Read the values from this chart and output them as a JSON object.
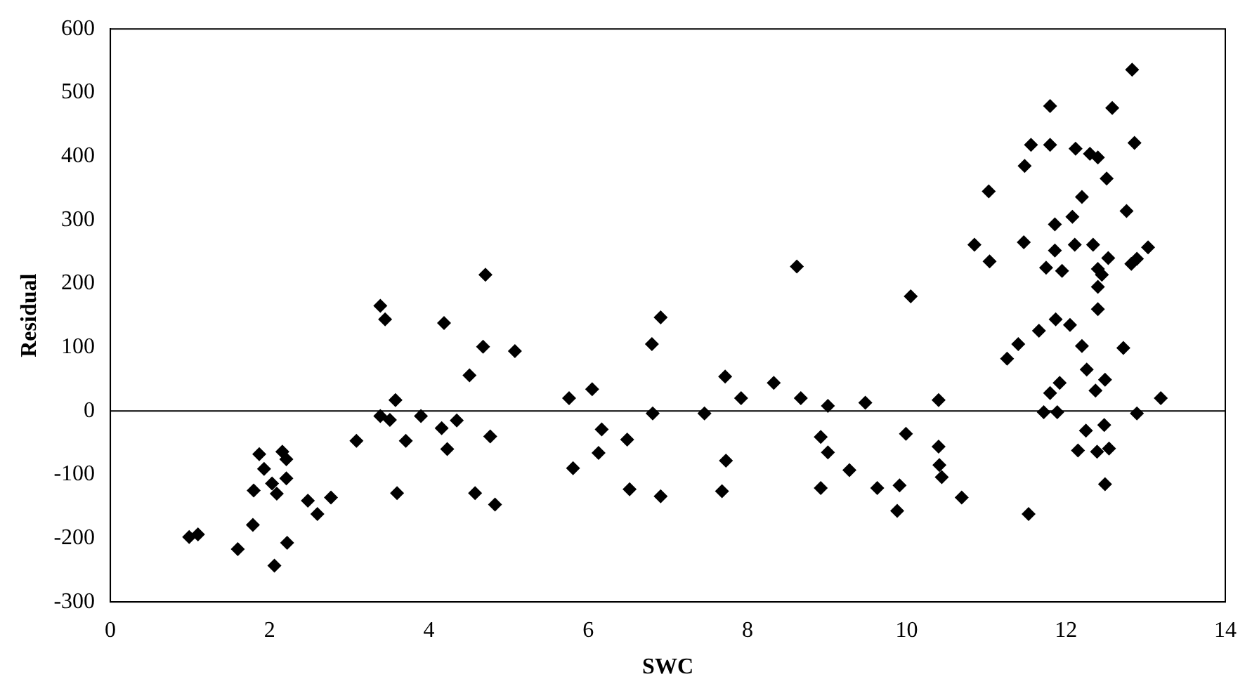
{
  "chart_data": {
    "type": "scatter",
    "xlabel": "SWC",
    "ylabel": "Residual",
    "marker": "diamond",
    "grid": false,
    "legend": false,
    "xlim": [
      0,
      14
    ],
    "xticks": [
      0,
      2,
      4,
      6,
      8,
      10,
      12,
      14
    ],
    "ylim": [
      -300,
      600
    ],
    "yticks": [
      -300,
      -200,
      -100,
      0,
      100,
      200,
      300,
      400,
      500,
      600
    ],
    "ref_lines": [
      {
        "axis": "y",
        "value": 0,
        "color": "#000000"
      }
    ],
    "series": [
      {
        "color": "#000000",
        "x": [
          0.99,
          1.1,
          1.6,
          1.79,
          1.8,
          1.87,
          1.93,
          2.03,
          2.09,
          2.06,
          2.16,
          2.21,
          2.21,
          2.22,
          2.48,
          2.6,
          2.77,
          3.09,
          3.39,
          3.45,
          3.39,
          3.58,
          3.51,
          3.6,
          3.71,
          3.9,
          4.19,
          4.16,
          4.23,
          4.35,
          4.51,
          4.58,
          4.71,
          4.68,
          4.77,
          4.83,
          5.08,
          5.76,
          5.81,
          6.05,
          6.17,
          6.13,
          6.49,
          6.52,
          6.8,
          6.91,
          6.81,
          6.91,
          7.46,
          7.72,
          7.73,
          7.68,
          7.92,
          8.33,
          8.62,
          8.67,
          8.92,
          9.01,
          8.92,
          9.01,
          9.28,
          9.48,
          9.63,
          9.91,
          9.88,
          9.99,
          10.05,
          10.4,
          10.4,
          10.41,
          10.44,
          10.69,
          11.53,
          11.03,
          10.85,
          11.04,
          11.26,
          11.4,
          11.48,
          11.56,
          11.47,
          11.66,
          11.8,
          11.8,
          11.86,
          11.86,
          11.75,
          11.95,
          11.87,
          12.05,
          11.92,
          11.8,
          11.72,
          11.89,
          12.12,
          12.08,
          12.2,
          12.11,
          12.3,
          12.4,
          12.51,
          12.34,
          12.53,
          12.4,
          12.45,
          12.4,
          12.4,
          12.2,
          12.26,
          12.49,
          12.37,
          12.25,
          12.15,
          12.39,
          12.48,
          12.54,
          12.49,
          12.58,
          12.76,
          12.72,
          12.83,
          12.86,
          12.82,
          12.89,
          13.03,
          12.89,
          13.19
        ],
        "values": [
          -198,
          -194,
          -217,
          -179,
          -125,
          -68,
          -91,
          -114,
          -130,
          -243,
          -64,
          -76,
          -106,
          -207,
          -141,
          -162,
          -136,
          -47,
          165,
          144,
          -8,
          17,
          -14,
          -129,
          -47,
          -8,
          138,
          -27,
          -60,
          -15,
          56,
          -129,
          214,
          101,
          -40,
          -147,
          94,
          20,
          -90,
          34,
          -29,
          -66,
          -45,
          -123,
          105,
          147,
          -4,
          -134,
          -4,
          54,
          -78,
          -126,
          20,
          44,
          227,
          20,
          -41,
          -65,
          -121,
          8,
          -93,
          13,
          -121,
          -117,
          -157,
          -36,
          180,
          17,
          -56,
          -85,
          -104,
          -136,
          -162,
          345,
          261,
          235,
          82,
          105,
          385,
          418,
          265,
          126,
          479,
          418,
          293,
          252,
          225,
          220,
          144,
          135,
          44,
          28,
          -2,
          -2,
          412,
          305,
          336,
          261,
          404,
          398,
          365,
          261,
          240,
          223,
          214,
          195,
          160,
          102,
          65,
          49,
          32,
          -31,
          -62,
          -64,
          -22,
          -59,
          -115,
          476,
          314,
          99,
          536,
          421,
          231,
          239,
          257,
          -4,
          20
        ]
      }
    ]
  }
}
